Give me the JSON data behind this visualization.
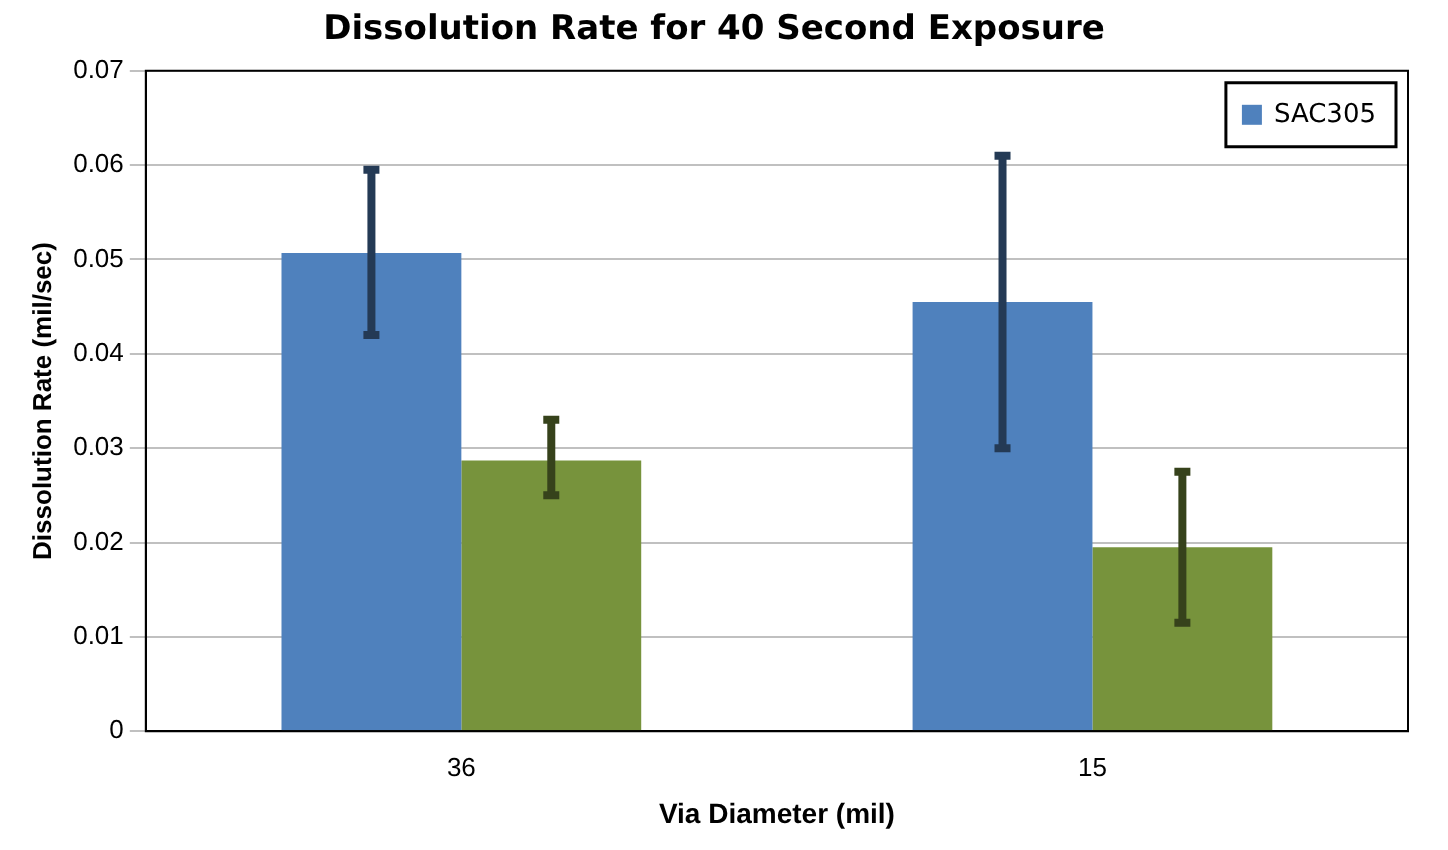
{
  "chart_data": {
    "type": "bar",
    "title": "Dissolution Rate for 40 Second Exposure",
    "xlabel": "Via Diameter (mil)",
    "ylabel": "Dissolution Rate (mil/sec)",
    "categories": [
      "36",
      "15"
    ],
    "series": [
      {
        "name": "SAC305",
        "color": "#4f81bd",
        "values": [
          0.0507,
          0.0455
        ],
        "errors": [
          [
            0.042,
            0.0595
          ],
          [
            0.03,
            0.061
          ]
        ]
      },
      {
        "color": "#77933c",
        "values": [
          0.0287,
          0.0195
        ],
        "errors": [
          [
            0.025,
            0.033
          ],
          [
            0.0115,
            0.0275
          ]
        ]
      }
    ],
    "ylim": [
      0,
      0.07
    ],
    "yticks": [
      0,
      0.01,
      0.02,
      0.03,
      0.04,
      0.05,
      0.06,
      0.07
    ],
    "grid": "y",
    "legend": "top right"
  }
}
